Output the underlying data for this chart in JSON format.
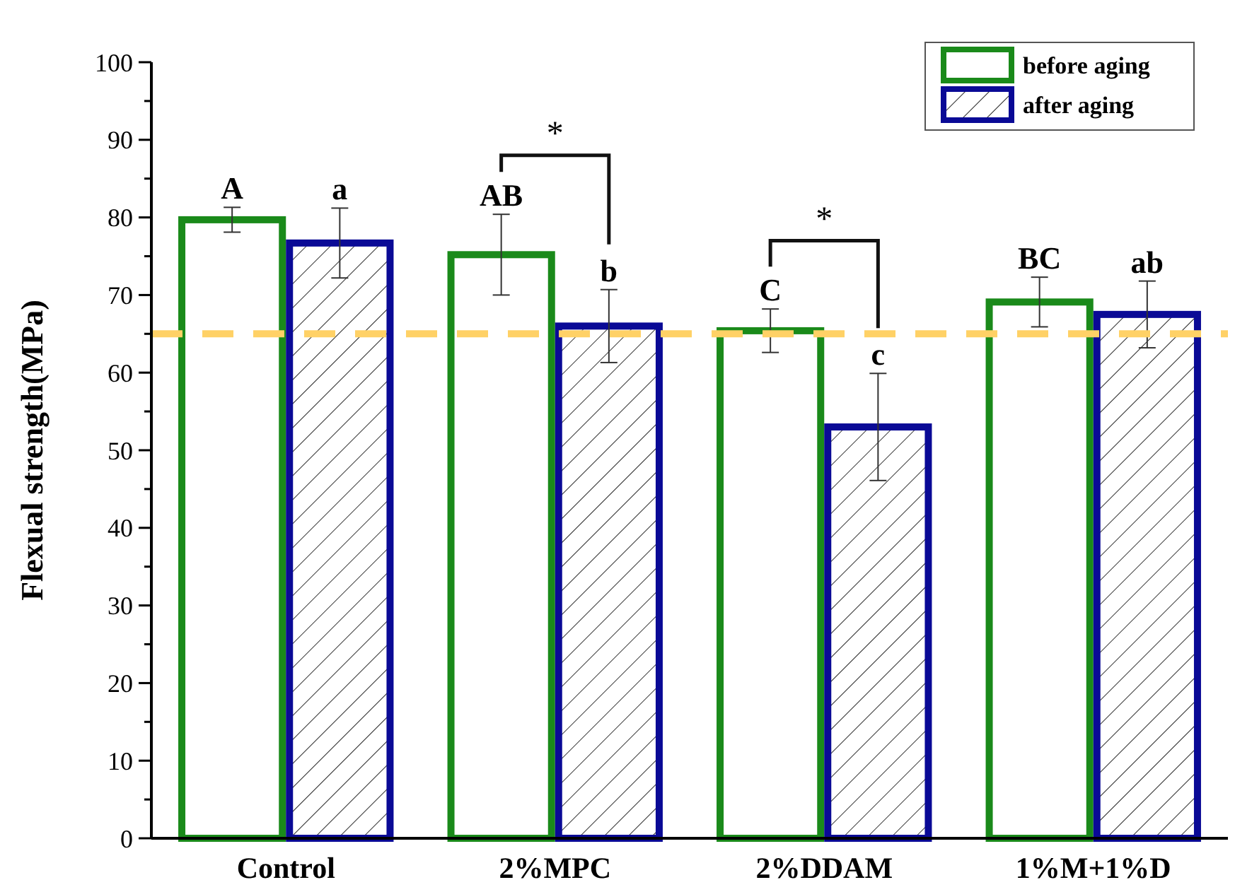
{
  "chart_data": {
    "type": "bar",
    "ylabel": "Flexual strength(MPa)",
    "categories": [
      "Control",
      "2%MPC",
      "2%DDAM",
      "1%M+1%D"
    ],
    "series": [
      {
        "name": "before aging",
        "color": "#1a8a1a",
        "values": [
          79.7,
          75.2,
          65.4,
          69.1
        ],
        "errors": [
          1.6,
          5.2,
          2.8,
          3.2
        ],
        "value_labels": [
          "A",
          "AB",
          "C",
          "BC"
        ]
      },
      {
        "name": "after aging",
        "color": "#0a0a96",
        "values": [
          76.7,
          66.0,
          53.0,
          67.5
        ],
        "errors": [
          4.5,
          4.7,
          6.9,
          4.3
        ],
        "value_labels": [
          "a",
          "b",
          "c",
          "ab"
        ]
      }
    ],
    "ylim": [
      0,
      100
    ],
    "yticks": [
      0,
      {
        "value": 5,
        "label": null
      },
      10,
      {
        "value": 15,
        "label": null
      },
      20,
      {
        "value": 25,
        "label": null
      },
      30,
      {
        "value": 35,
        "label": null
      },
      40,
      {
        "value": 45,
        "label": null
      },
      50,
      {
        "value": 55,
        "label": null
      },
      60,
      {
        "value": 65,
        "label": null
      },
      70,
      {
        "value": 75,
        "label": null
      },
      80,
      {
        "value": 85,
        "label": null
      },
      90,
      {
        "value": 95,
        "label": null
      },
      100
    ],
    "ref_lines": [
      {
        "axis": "y",
        "value": 65,
        "color": "#ffd166",
        "line_style": "dashed"
      }
    ],
    "annotations": [
      "*",
      "*"
    ],
    "grid": false,
    "legend": "top right"
  }
}
